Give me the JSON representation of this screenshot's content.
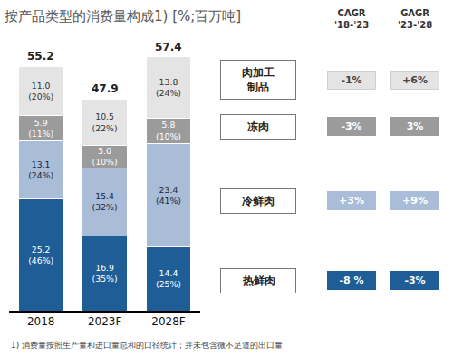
{
  "chart_data": {
    "type": "bar",
    "stacked": true,
    "data_labels": true,
    "tick_labels": "x",
    "title": "按产品类型的消费量构成1) [%;百万吨]",
    "footnote": "1) 消费量按照生产量和进口量总和的口径统计；并未包含微不足道的出口量",
    "categories": [
      "2018",
      "2023F",
      "2028F"
    ],
    "ylim": [
      0,
      60
    ],
    "totals": [
      55.2,
      47.9,
      57.4
    ],
    "growth_columns": [
      "CAGR\n'18-'23",
      "GAGR\n'23-'28"
    ],
    "series": [
      {
        "name": "热鲜肉",
        "color": "#1f5d96",
        "values": [
          25.2,
          16.9,
          14.4
        ],
        "value_labels": [
          "25.2\n(46%)",
          "16.9\n(35%)",
          "14.4\n(25%)"
        ],
        "growth": [
          "-8 %",
          "-3%"
        ]
      },
      {
        "name": "冷鲜肉",
        "color": "#a9bcd8",
        "values": [
          13.1,
          15.4,
          23.4
        ],
        "value_labels": [
          "13.1\n(24%)",
          "15.4\n(32%)",
          "23.4\n(41%)"
        ],
        "growth": [
          "+3%",
          "+9%"
        ]
      },
      {
        "name": "冻肉",
        "color": "#9b9b9b",
        "values": [
          5.9,
          5.0,
          5.8
        ],
        "value_labels": [
          "5.9\n(11%)",
          "5.0\n(10%)",
          "5.8\n(10%)"
        ],
        "growth": [
          "-3%",
          "3%"
        ]
      },
      {
        "name": "肉加工制品",
        "color": "#e4e4e4",
        "values": [
          11.0,
          10.5,
          13.8
        ],
        "value_labels": [
          "11.0\n(20%)",
          "10.5\n(22%)",
          "13.8\n(24%)"
        ],
        "growth": [
          "-1%",
          "+6%"
        ]
      }
    ]
  }
}
